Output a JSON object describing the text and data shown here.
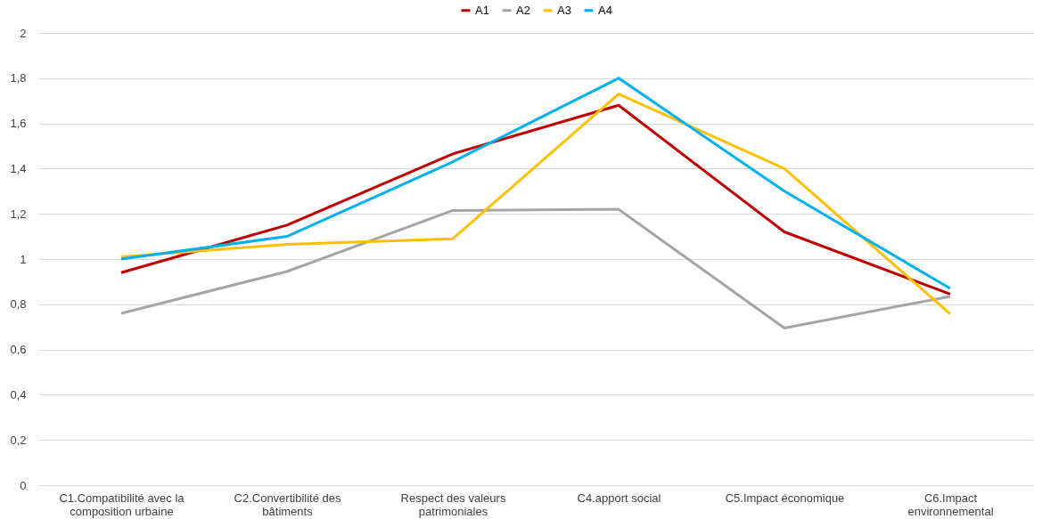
{
  "chart_data": {
    "type": "line",
    "categories": [
      "C1.Compatibilité avec la composition urbaine",
      "C2.Convertibilité des bâtiments",
      "Respect des valeurs patrimoniales",
      "C4.apport social",
      "C5.Impact économique",
      "C6.Impact environnemental"
    ],
    "series": [
      {
        "name": "A1",
        "color": "#c00000",
        "values": [
          0.94,
          1.15,
          1.465,
          1.68,
          1.12,
          0.845
        ]
      },
      {
        "name": "A2",
        "color": "#a5a5a5",
        "values": [
          0.76,
          0.945,
          1.215,
          1.22,
          0.695,
          0.835
        ]
      },
      {
        "name": "A3",
        "color": "#ffc000",
        "values": [
          1.01,
          1.065,
          1.09,
          1.73,
          1.4,
          0.757
        ]
      },
      {
        "name": "A4",
        "color": "#00b0f0",
        "values": [
          1.0,
          1.1,
          1.43,
          1.8,
          1.3,
          0.87
        ]
      }
    ],
    "ylim": [
      0,
      2
    ],
    "yticks": [
      0,
      {
        "value": 0.2,
        "label": "0,2"
      },
      {
        "value": 0.4,
        "label": "0,4"
      },
      {
        "value": 0.6,
        "label": "0,6"
      },
      {
        "value": 0.8,
        "label": "0,8"
      },
      1,
      {
        "value": 1.2,
        "label": "1,2"
      },
      {
        "value": 1.4,
        "label": "1,4"
      },
      {
        "value": 1.6,
        "label": "1,6"
      },
      {
        "value": 1.8,
        "label": "1,8"
      },
      2
    ],
    "grid": "y",
    "legend": "top",
    "marker": "none",
    "line_style": "solid"
  }
}
